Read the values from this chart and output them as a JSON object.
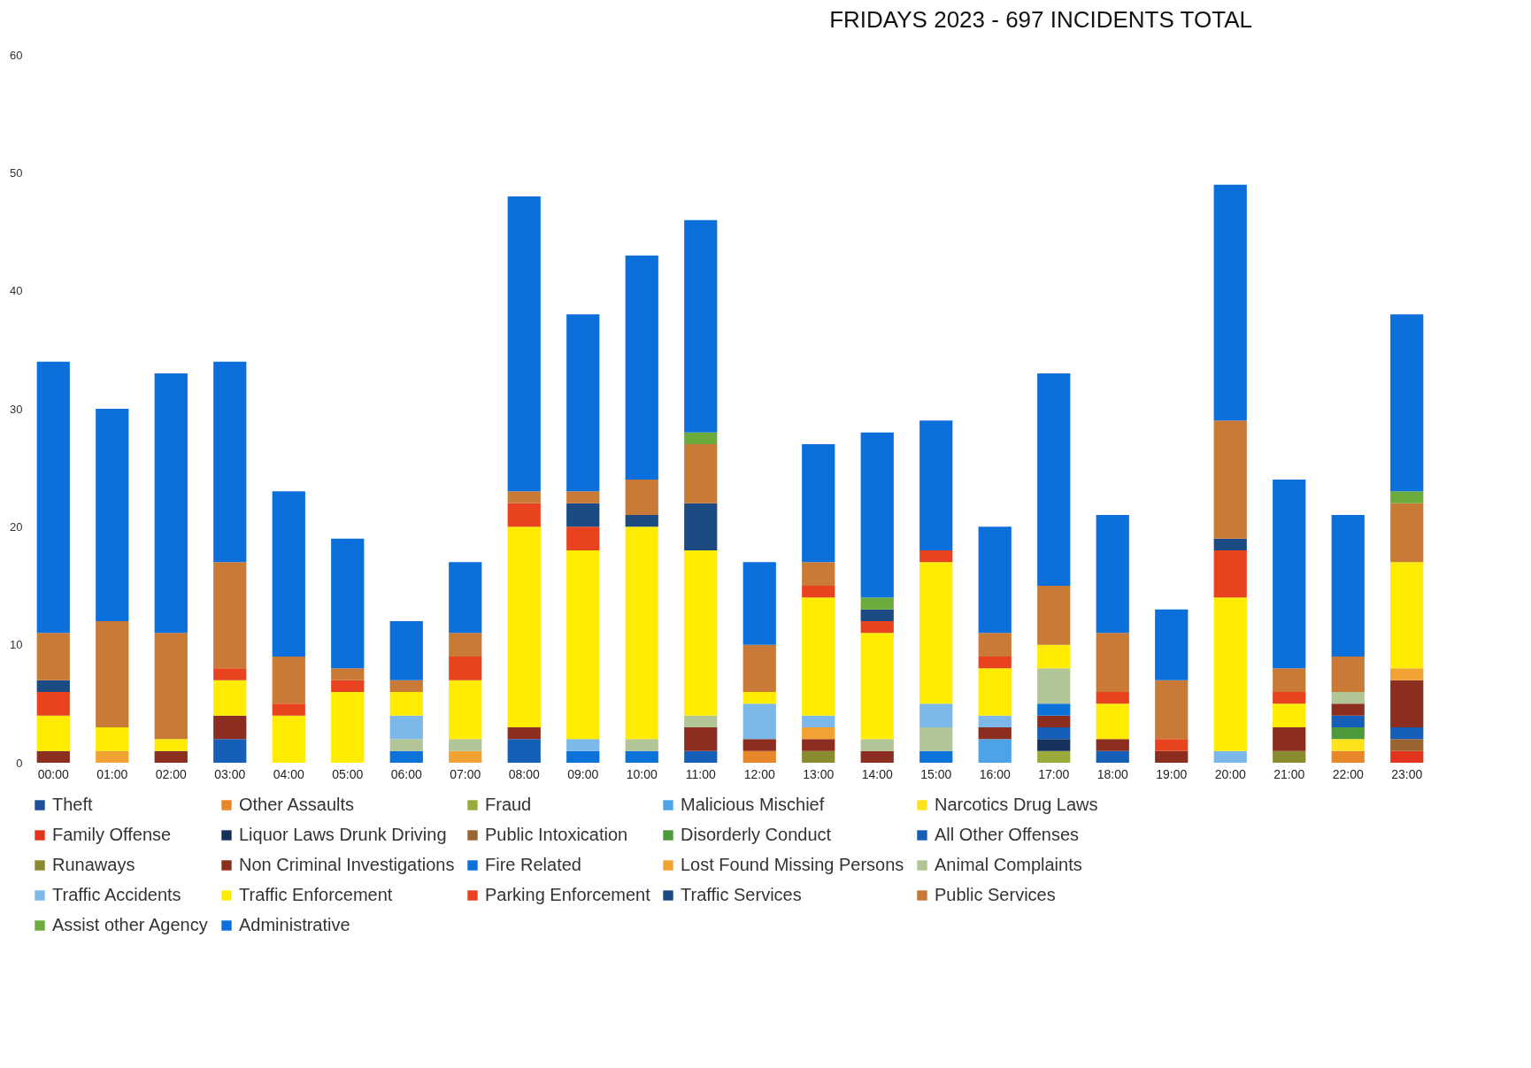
{
  "chart_data": {
    "type": "bar",
    "stacked": true,
    "title": "FRIDAYS 2023 - 697 INCIDENTS TOTAL",
    "categories": [
      "00:00",
      "01:00",
      "02:00",
      "03:00",
      "04:00",
      "05:00",
      "06:00",
      "07:00",
      "08:00",
      "09:00",
      "10:00",
      "11:00",
      "12:00",
      "13:00",
      "14:00",
      "15:00",
      "16:00",
      "17:00",
      "18:00",
      "19:00",
      "20:00",
      "21:00",
      "22:00",
      "23:00"
    ],
    "ylim": [
      0,
      60
    ],
    "yticks": [
      0,
      10,
      20,
      30,
      40,
      50,
      60
    ],
    "grid": false,
    "legend": "bottom",
    "series": [
      {
        "name": "Theft",
        "color": "#1f4e9a",
        "values": [
          0,
          0,
          0,
          0,
          0,
          0,
          0,
          0,
          0,
          0,
          0,
          0,
          0,
          0,
          0,
          0,
          0,
          0,
          0,
          0,
          0,
          0,
          0,
          0
        ]
      },
      {
        "name": "Other Assaults",
        "color": "#e8862a",
        "values": [
          0,
          0,
          0,
          0,
          0,
          0,
          0,
          0,
          0,
          0,
          0,
          0,
          1,
          0,
          0,
          0,
          0,
          0,
          0,
          0,
          0,
          0,
          1,
          0
        ]
      },
      {
        "name": "Fraud",
        "color": "#9aab3c",
        "values": [
          0,
          0,
          0,
          0,
          0,
          0,
          0,
          0,
          0,
          0,
          0,
          0,
          0,
          0,
          0,
          0,
          0,
          1,
          0,
          0,
          0,
          0,
          0,
          0
        ]
      },
      {
        "name": "Malicious Mischief",
        "color": "#4ea3e6",
        "values": [
          0,
          0,
          0,
          0,
          0,
          0,
          0,
          0,
          0,
          0,
          0,
          0,
          0,
          0,
          0,
          0,
          2,
          0,
          0,
          0,
          0,
          0,
          0,
          0
        ]
      },
      {
        "name": "Narcotics Drug Laws",
        "color": "#ffe31a",
        "values": [
          0,
          0,
          0,
          0,
          0,
          0,
          0,
          0,
          0,
          0,
          0,
          0,
          0,
          0,
          0,
          0,
          0,
          0,
          0,
          0,
          0,
          0,
          1,
          0
        ]
      },
      {
        "name": "Family Offense",
        "color": "#e2341c",
        "values": [
          0,
          0,
          0,
          0,
          0,
          0,
          0,
          0,
          0,
          0,
          0,
          0,
          0,
          0,
          0,
          0,
          0,
          0,
          0,
          0,
          0,
          0,
          0,
          1
        ]
      },
      {
        "name": "Liquor Laws  Drunk Driving",
        "color": "#16325c",
        "values": [
          0,
          0,
          0,
          0,
          0,
          0,
          0,
          0,
          0,
          0,
          0,
          0,
          0,
          0,
          0,
          0,
          0,
          1,
          0,
          0,
          0,
          0,
          0,
          0
        ]
      },
      {
        "name": "Public Intoxication",
        "color": "#9a6530",
        "values": [
          0,
          0,
          0,
          0,
          0,
          0,
          0,
          0,
          0,
          0,
          0,
          0,
          0,
          0,
          0,
          0,
          0,
          0,
          0,
          0,
          0,
          0,
          0,
          1
        ]
      },
      {
        "name": "Disorderly Conduct",
        "color": "#4c9a3a",
        "values": [
          0,
          0,
          0,
          0,
          0,
          0,
          0,
          0,
          0,
          0,
          0,
          0,
          0,
          0,
          0,
          0,
          0,
          0,
          0,
          0,
          0,
          0,
          1,
          0
        ]
      },
      {
        "name": "All Other Offenses",
        "color": "#155fb8",
        "values": [
          0,
          0,
          0,
          2,
          0,
          0,
          0,
          0,
          2,
          0,
          0,
          1,
          0,
          0,
          0,
          0,
          0,
          1,
          1,
          0,
          0,
          0,
          1,
          1
        ]
      },
      {
        "name": "Runaways",
        "color": "#8a8a2e",
        "values": [
          0,
          0,
          0,
          0,
          0,
          0,
          0,
          0,
          0,
          0,
          0,
          0,
          0,
          1,
          0,
          0,
          0,
          0,
          0,
          0,
          0,
          1,
          0,
          0
        ]
      },
      {
        "name": "Non Criminal Investigations",
        "color": "#8c2e1f",
        "values": [
          1,
          0,
          1,
          2,
          0,
          0,
          0,
          0,
          1,
          0,
          0,
          2,
          1,
          1,
          1,
          0,
          1,
          1,
          1,
          1,
          0,
          2,
          1,
          4
        ]
      },
      {
        "name": "Fire Related",
        "color": "#0a72d8",
        "values": [
          0,
          0,
          0,
          0,
          0,
          0,
          1,
          0,
          0,
          1,
          1,
          0,
          0,
          0,
          0,
          1,
          0,
          1,
          0,
          0,
          0,
          0,
          0,
          0
        ]
      },
      {
        "name": "Lost Found Missing Persons",
        "color": "#f0a332",
        "values": [
          0,
          1,
          0,
          0,
          0,
          0,
          0,
          1,
          0,
          0,
          0,
          0,
          0,
          1,
          0,
          0,
          0,
          0,
          0,
          0,
          0,
          0,
          0,
          1
        ]
      },
      {
        "name": "Animal Complaints",
        "color": "#b2c596",
        "values": [
          0,
          0,
          0,
          0,
          0,
          0,
          1,
          1,
          0,
          0,
          1,
          1,
          0,
          0,
          1,
          2,
          0,
          3,
          0,
          0,
          0,
          0,
          1,
          0
        ]
      },
      {
        "name": "Traffic Accidents",
        "color": "#7cb9ea",
        "values": [
          0,
          0,
          0,
          0,
          0,
          0,
          2,
          0,
          0,
          1,
          0,
          0,
          3,
          1,
          0,
          2,
          1,
          0,
          0,
          0,
          1,
          0,
          0,
          0
        ]
      },
      {
        "name": "Traffic Enforcement",
        "color": "#ffec00",
        "values": [
          3,
          2,
          1,
          3,
          4,
          6,
          2,
          5,
          17,
          16,
          18,
          14,
          1,
          10,
          9,
          12,
          4,
          2,
          3,
          0,
          13,
          2,
          0,
          9
        ]
      },
      {
        "name": "Parking Enforcement",
        "color": "#e8431e",
        "values": [
          2,
          0,
          0,
          1,
          1,
          1,
          0,
          2,
          2,
          2,
          0,
          0,
          0,
          1,
          1,
          1,
          1,
          0,
          1,
          1,
          4,
          1,
          0,
          0
        ]
      },
      {
        "name": "Traffic Services",
        "color": "#1c4a82",
        "values": [
          1,
          0,
          0,
          0,
          0,
          0,
          0,
          0,
          0,
          2,
          1,
          4,
          0,
          0,
          1,
          0,
          0,
          0,
          0,
          0,
          1,
          0,
          0,
          0
        ]
      },
      {
        "name": "Public Services",
        "color": "#c87a36",
        "values": [
          4,
          9,
          9,
          9,
          4,
          1,
          1,
          2,
          1,
          1,
          3,
          5,
          4,
          2,
          0,
          0,
          2,
          5,
          5,
          5,
          10,
          2,
          3,
          5
        ]
      },
      {
        "name": "Assist other Agency",
        "color": "#6aab3c",
        "values": [
          0,
          0,
          0,
          0,
          0,
          0,
          0,
          0,
          0,
          0,
          0,
          1,
          0,
          0,
          1,
          0,
          0,
          0,
          0,
          0,
          0,
          0,
          0,
          1
        ]
      },
      {
        "name": "Administrative",
        "color": "#0b6fdc",
        "values": [
          23,
          18,
          22,
          17,
          14,
          11,
          5,
          6,
          25,
          15,
          19,
          18,
          7,
          10,
          14,
          11,
          9,
          18,
          10,
          6,
          20,
          16,
          12,
          15
        ]
      }
    ]
  }
}
